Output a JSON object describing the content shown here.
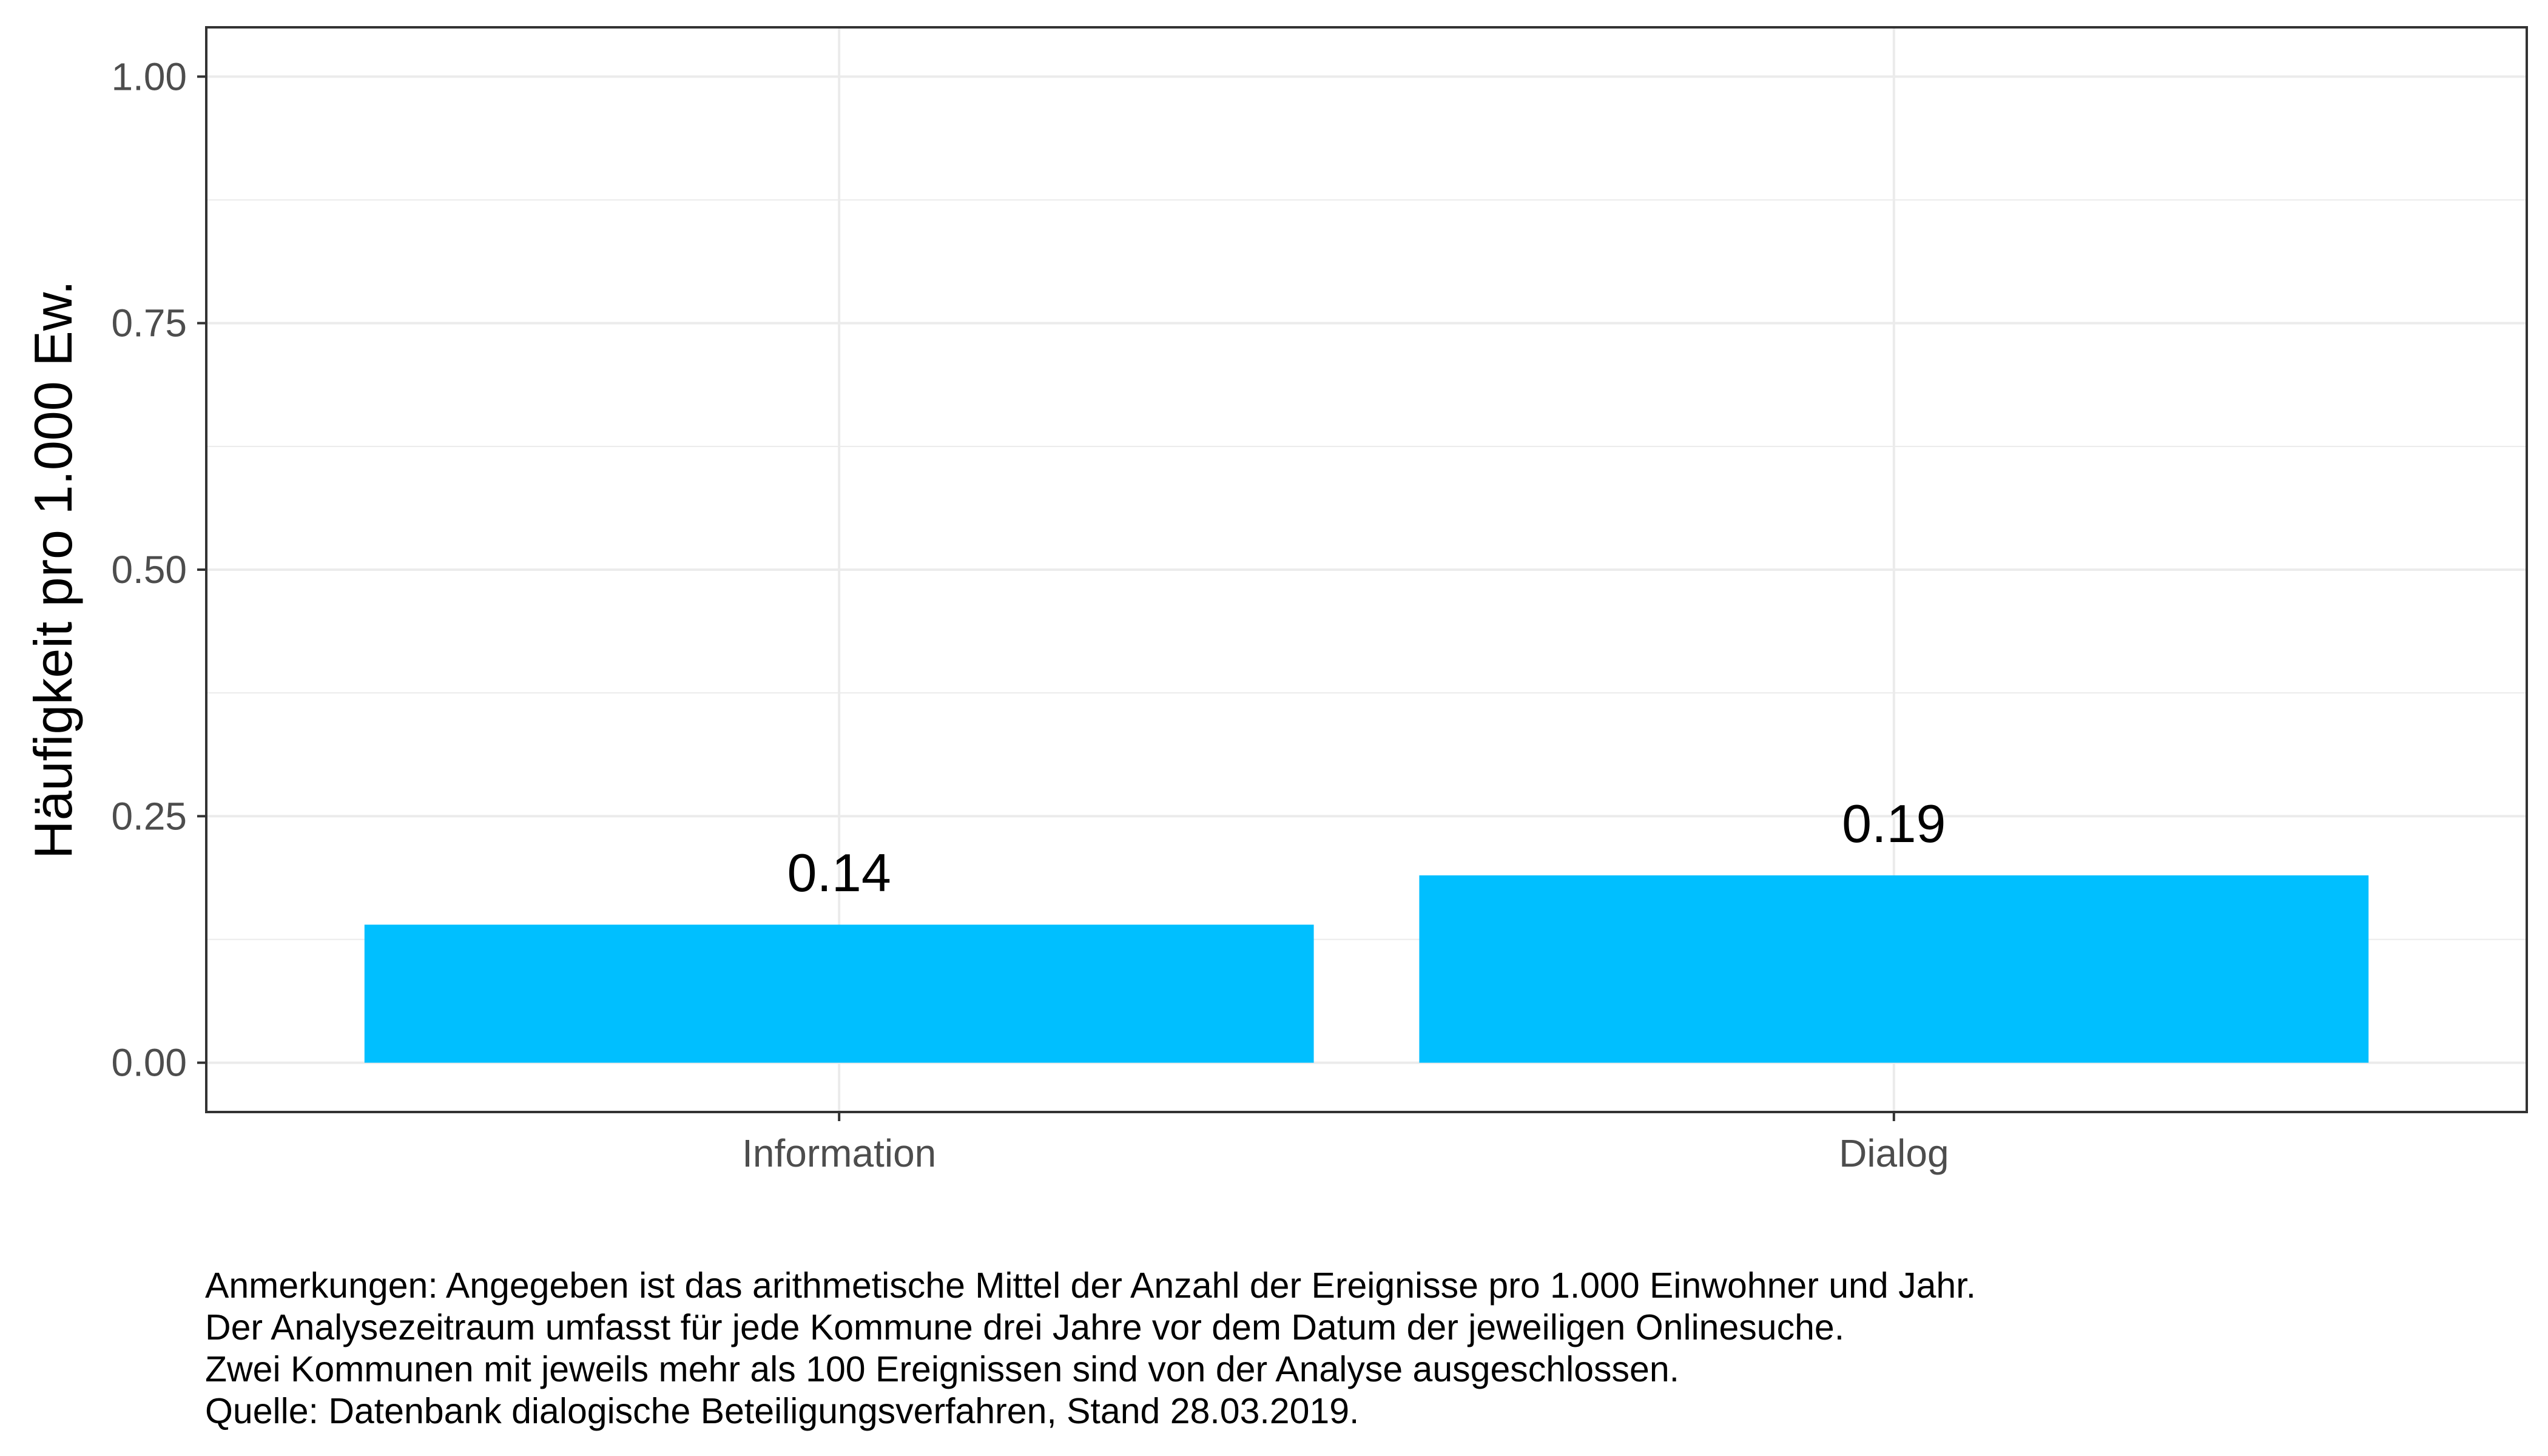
{
  "chart_data": {
    "type": "bar",
    "categories": [
      "Information",
      "Dialog"
    ],
    "values": [
      0.14,
      0.19
    ],
    "data_labels": [
      "0.14",
      "0.19"
    ],
    "title": "",
    "xlabel": "",
    "ylabel": "Häufigkeit pro 1.000 Ew.",
    "ylim": [
      -0.05,
      1.05
    ],
    "yticks": [
      0.0,
      0.25,
      0.5,
      0.75,
      1.0
    ],
    "ytick_labels": [
      "0.00",
      "0.25",
      "0.50",
      "0.75",
      "1.00"
    ],
    "grid": true,
    "legend": "none",
    "bar_color": "#00BFFF"
  },
  "notes": [
    "Anmerkungen: Angegeben ist das arithmetische Mittel der Anzahl der Ereignisse pro 1.000 Einwohner und Jahr.",
    "Der Analysezeitraum umfasst für jede Kommune drei Jahre vor dem Datum der jeweiligen Onlinesuche.",
    "Zwei Kommunen mit jeweils mehr als 100 Ereignissen sind von der Analyse ausgeschlossen.",
    "Quelle: Datenbank dialogische Beteiligungsverfahren, Stand 28.03.2019."
  ],
  "colors": {
    "grid": "#EBEBEB",
    "panel_border": "#333333",
    "tick_text": "#4D4D4D"
  }
}
